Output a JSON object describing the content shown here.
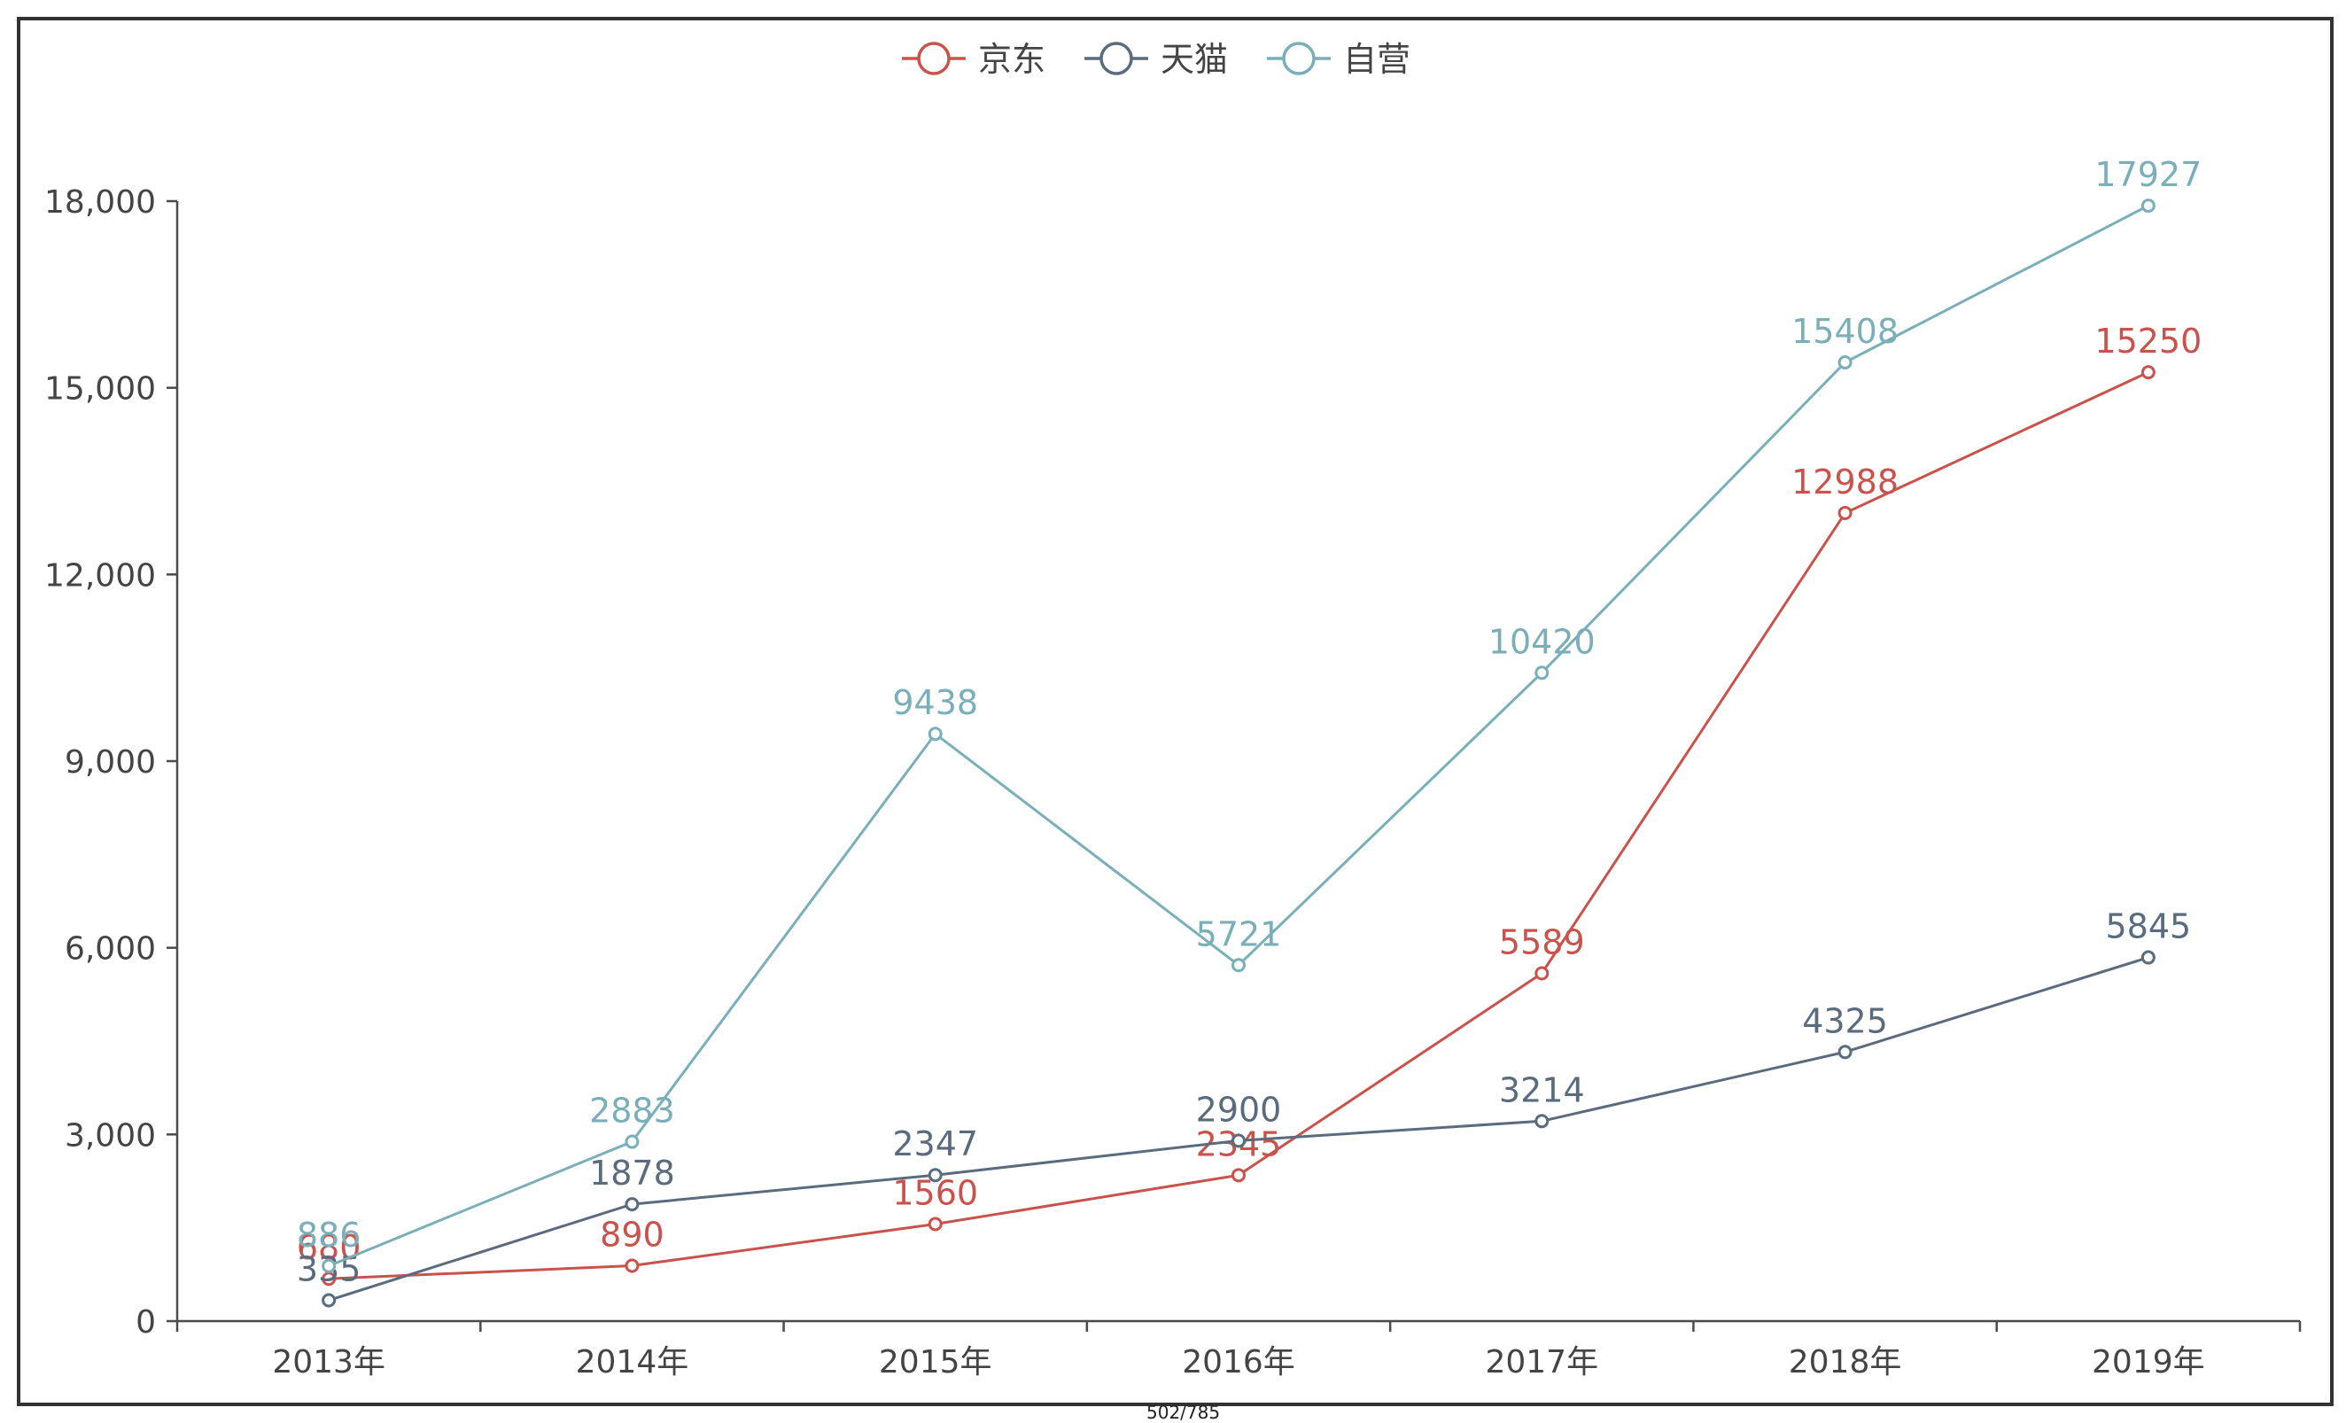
{
  "page_label": "502/785",
  "colors": {
    "axis": "#4a4a4a",
    "text": "#444444"
  },
  "chart_data": {
    "type": "line",
    "title": "",
    "xlabel": "",
    "ylabel": "",
    "categories": [
      "2013年",
      "2014年",
      "2015年",
      "2016年",
      "2017年",
      "2018年",
      "2019年"
    ],
    "y_ticks": [
      "0",
      "3,000",
      "6,000",
      "9,000",
      "12,000",
      "15,000",
      "18,000"
    ],
    "ylim": [
      0,
      18000
    ],
    "grid": false,
    "legend_position": "top-center",
    "series": [
      {
        "name": "京东",
        "color": "#c9534c",
        "values": [
          680,
          890,
          1560,
          2345,
          5589,
          12988,
          15250
        ]
      },
      {
        "name": "天猫",
        "color": "#5a6b7d",
        "values": [
          335,
          1878,
          2347,
          2900,
          3214,
          4325,
          5845
        ]
      },
      {
        "name": "自营",
        "color": "#7aafb9",
        "values": [
          886,
          2883,
          9438,
          5721,
          10420,
          15408,
          17927
        ]
      }
    ]
  }
}
